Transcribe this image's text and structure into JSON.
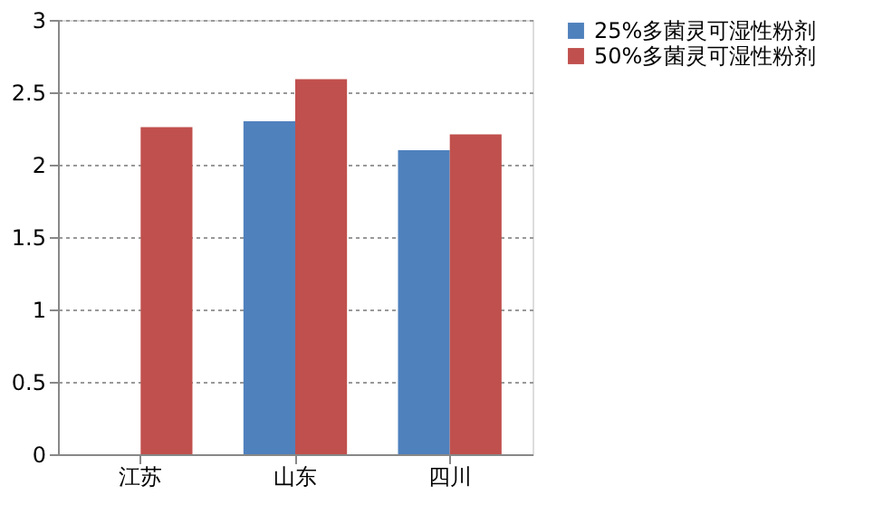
{
  "chart_data": {
    "type": "bar",
    "categories": [
      "江苏",
      "山东",
      "四川"
    ],
    "series": [
      {
        "name": "25%多菌灵可湿性粉剂",
        "color": "#4f81bd",
        "values": [
          null,
          2.3,
          2.1
        ]
      },
      {
        "name": "50%多菌灵可湿性粉剂",
        "color": "#c0504d",
        "values": [
          2.26,
          2.59,
          2.21
        ]
      }
    ],
    "ylim": [
      0,
      3
    ],
    "yticks": [
      0,
      0.5,
      1,
      1.5,
      2,
      2.5,
      3
    ],
    "grid": "y",
    "legend": "right"
  }
}
